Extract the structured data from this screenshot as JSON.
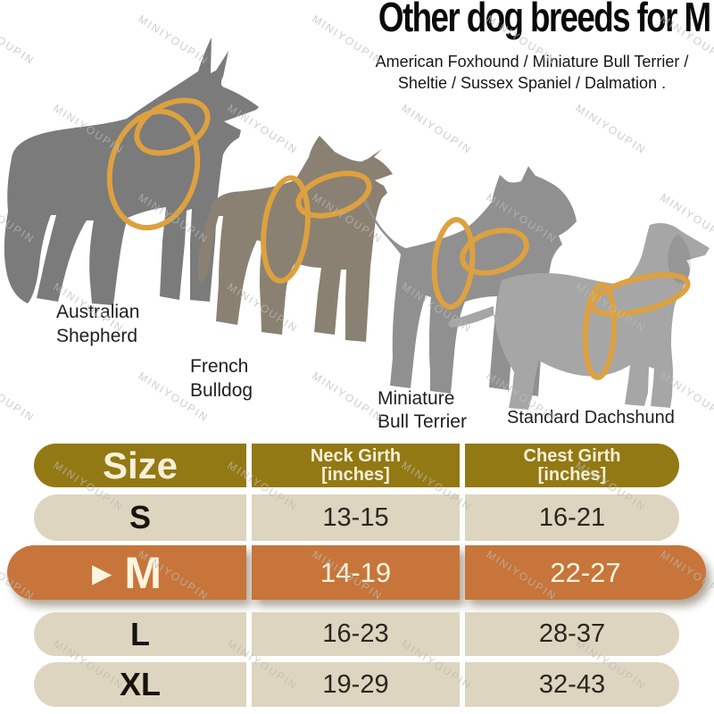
{
  "title": "Other dog breeds for M",
  "subtitle": {
    "line1": "American Foxhound / Miniature Bull Terrier /",
    "line2": "Sheltie / Sussex Spaniel / Dalmation ."
  },
  "watermark": {
    "text": "MINIYOUPIN"
  },
  "dogs": [
    {
      "name": "Australian Shepherd",
      "label_lines": [
        "Australian",
        "Shepherd"
      ]
    },
    {
      "name": "French Bulldog",
      "label_lines": [
        "French",
        "Bulldog"
      ]
    },
    {
      "name": "Miniature Bull Terrier",
      "label_lines": [
        "Miniature",
        "Bull Terrier"
      ]
    },
    {
      "name": "Standard Dachshund",
      "label_lines": [
        "Standard Dachshund"
      ]
    }
  ],
  "size_table": {
    "highlight_marker": "▶",
    "highlighted_size": "M",
    "columns": {
      "size": "Size",
      "neck": [
        "Neck Girth",
        "[inches]"
      ],
      "chest": [
        "Chest Girth",
        "[inches]"
      ]
    },
    "rows": [
      {
        "size": "S",
        "neck": "13-15",
        "chest": "16-21"
      },
      {
        "size": "M",
        "neck": "14-19",
        "chest": "22-27"
      },
      {
        "size": "L",
        "neck": "16-23",
        "chest": "28-37"
      },
      {
        "size": "XL",
        "neck": "19-29",
        "chest": "32-43"
      }
    ]
  },
  "colors": {
    "header_bg": "#937914",
    "row_bg": "#DDD5BF",
    "highlight_bg": "#C7753A",
    "harness_ring": "#DDA13F",
    "header_text": "#F7F0D8",
    "dog_gray_dark": "#7B7B7B",
    "dog_gray_brown": "#8B8172",
    "dog_gray_mid": "#909090",
    "dog_gray_light": "#A6A6A6"
  }
}
